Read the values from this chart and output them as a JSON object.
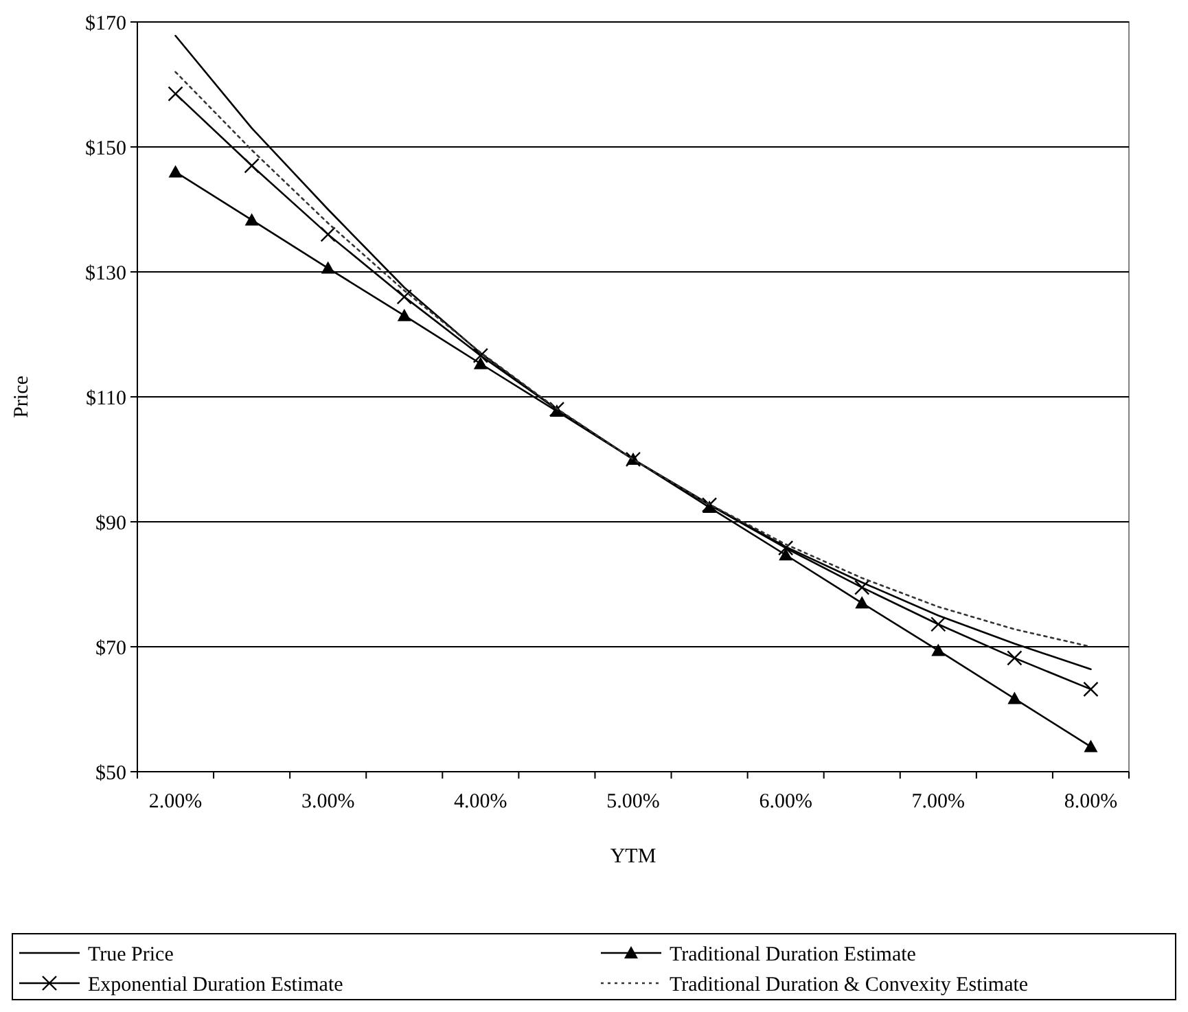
{
  "chart_data": {
    "type": "line",
    "xlabel": "YTM",
    "ylabel": "Price",
    "categories": [
      "2.00%",
      null,
      "3.00%",
      null,
      "4.00%",
      null,
      "5.00%",
      null,
      "6.00%",
      null,
      "7.00%",
      null,
      "8.00%"
    ],
    "series": [
      {
        "name": "True Price",
        "color": "#000000",
        "marker": "none",
        "line_style": "solid",
        "values": [
          167.8,
          153,
          140,
          127.5,
          117,
          108,
          100,
          92.8,
          86,
          80.3,
          75,
          70.5,
          66.4
        ]
      },
      {
        "name": "Traditional Duration Estimate",
        "color": "#000000",
        "marker": "triangle",
        "line_style": "solid",
        "values": [
          146,
          138.3,
          130.6,
          123,
          115.3,
          107.7,
          100,
          92.3,
          84.7,
          77,
          69.4,
          61.7,
          54
        ]
      },
      {
        "name": "Exponential Duration Estimate",
        "color": "#000000",
        "marker": "cross",
        "line_style": "solid",
        "values": [
          158.5,
          147,
          136,
          126,
          116.6,
          108,
          100,
          92.7,
          85.8,
          79.5,
          73.6,
          68.2,
          63.2
        ]
      },
      {
        "name": "Traditional Duration & Convexity Estimate",
        "color": "#333333",
        "marker": "none",
        "line_style": "dotted",
        "values": [
          162,
          149.5,
          137.8,
          127,
          117.1,
          108.1,
          100,
          92.8,
          86.4,
          81,
          76.4,
          72.8,
          70
        ]
      }
    ],
    "ylim": [
      50,
      170
    ],
    "yticks": [
      {
        "value": 50,
        "label": "$50"
      },
      {
        "value": 70,
        "label": "$70"
      },
      {
        "value": 90,
        "label": "$90"
      },
      {
        "value": 110,
        "label": "$110"
      },
      {
        "value": 130,
        "label": "$130"
      },
      {
        "value": 150,
        "label": "$150"
      },
      {
        "value": 170,
        "label": "$170"
      }
    ],
    "grid": "y",
    "legend": "bottom"
  }
}
